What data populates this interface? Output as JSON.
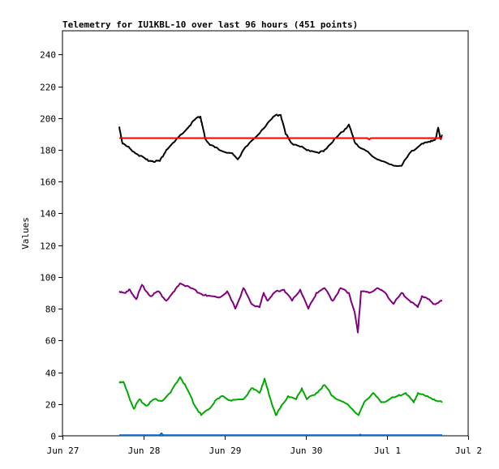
{
  "chart_data": {
    "type": "line",
    "title": "Telemetry for IU1KBL-10 over last 96 hours (451 points)",
    "xlabel": "",
    "ylabel": "Values",
    "x_units": "days since Jun 27 00:00",
    "xlim": [
      0,
      5
    ],
    "ylim": [
      0,
      255
    ],
    "xticks": [
      {
        "v": 0,
        "label": "Jun 27"
      },
      {
        "v": 1,
        "label": "Jun 28"
      },
      {
        "v": 2,
        "label": "Jun 29"
      },
      {
        "v": 3,
        "label": "Jun 30"
      },
      {
        "v": 4,
        "label": "Jul 1"
      },
      {
        "v": 5,
        "label": "Jul 2"
      }
    ],
    "yticks": [
      0,
      20,
      40,
      60,
      80,
      100,
      120,
      140,
      160,
      180,
      200,
      220,
      240
    ],
    "grid": false,
    "series": [
      {
        "name": "black",
        "color": "#000000",
        "points": [
          [
            0.7,
            194.6
          ],
          [
            0.74,
            184
          ],
          [
            0.83,
            181
          ],
          [
            0.93,
            177
          ],
          [
            1.03,
            174
          ],
          [
            1.11,
            173
          ],
          [
            1.2,
            173
          ],
          [
            1.28,
            180
          ],
          [
            1.38,
            185
          ],
          [
            1.53,
            193
          ],
          [
            1.63,
            199
          ],
          [
            1.7,
            201
          ],
          [
            1.72,
            196
          ],
          [
            1.76,
            187
          ],
          [
            1.83,
            183
          ],
          [
            1.93,
            180
          ],
          [
            2.08,
            178
          ],
          [
            2.16,
            174
          ],
          [
            2.23,
            180
          ],
          [
            2.38,
            188
          ],
          [
            2.53,
            197
          ],
          [
            2.63,
            202
          ],
          [
            2.69,
            202
          ],
          [
            2.75,
            190
          ],
          [
            2.83,
            184
          ],
          [
            2.93,
            182
          ],
          [
            3.03,
            180
          ],
          [
            3.16,
            178
          ],
          [
            3.23,
            180
          ],
          [
            3.38,
            188
          ],
          [
            3.48,
            193
          ],
          [
            3.53,
            196
          ],
          [
            3.6,
            185
          ],
          [
            3.68,
            181
          ],
          [
            3.78,
            178
          ],
          [
            3.88,
            174
          ],
          [
            4.03,
            171
          ],
          [
            4.18,
            170
          ],
          [
            4.28,
            178
          ],
          [
            4.43,
            184
          ],
          [
            4.53,
            185
          ],
          [
            4.6,
            187
          ],
          [
            4.63,
            194
          ],
          [
            4.66,
            187
          ],
          [
            4.68,
            189
          ]
        ]
      },
      {
        "name": "red",
        "color": "#ff0000",
        "points": [
          [
            0.7,
            187.4
          ],
          [
            3.76,
            187.4
          ],
          [
            3.78,
            186.5
          ],
          [
            3.8,
            187.4
          ],
          [
            4.68,
            187.4
          ]
        ]
      },
      {
        "name": "purple",
        "color": "#800080",
        "points": [
          [
            0.7,
            91
          ],
          [
            0.78,
            90
          ],
          [
            0.83,
            92
          ],
          [
            0.91,
            86
          ],
          [
            0.98,
            95
          ],
          [
            1.08,
            88
          ],
          [
            1.18,
            91
          ],
          [
            1.28,
            85
          ],
          [
            1.38,
            91
          ],
          [
            1.45,
            96
          ],
          [
            1.58,
            93
          ],
          [
            1.68,
            90
          ],
          [
            1.78,
            88
          ],
          [
            1.93,
            87
          ],
          [
            2.03,
            91
          ],
          [
            2.13,
            80
          ],
          [
            2.23,
            93
          ],
          [
            2.33,
            83
          ],
          [
            2.43,
            81
          ],
          [
            2.48,
            90
          ],
          [
            2.53,
            85
          ],
          [
            2.63,
            91
          ],
          [
            2.73,
            92
          ],
          [
            2.83,
            85
          ],
          [
            2.93,
            92
          ],
          [
            3.03,
            80
          ],
          [
            3.13,
            90
          ],
          [
            3.23,
            93
          ],
          [
            3.33,
            85
          ],
          [
            3.43,
            93
          ],
          [
            3.53,
            90
          ],
          [
            3.6,
            78
          ],
          [
            3.64,
            65
          ],
          [
            3.68,
            91
          ],
          [
            3.78,
            90
          ],
          [
            3.88,
            93
          ],
          [
            3.98,
            90
          ],
          [
            4.08,
            83
          ],
          [
            4.18,
            90
          ],
          [
            4.28,
            85
          ],
          [
            4.38,
            81
          ],
          [
            4.43,
            88
          ],
          [
            4.51,
            86
          ],
          [
            4.58,
            83
          ],
          [
            4.68,
            85
          ]
        ]
      },
      {
        "name": "green",
        "color": "#00aa00",
        "points": [
          [
            0.7,
            34
          ],
          [
            0.75,
            34
          ],
          [
            0.81,
            26
          ],
          [
            0.88,
            17
          ],
          [
            0.95,
            23
          ],
          [
            1.03,
            19
          ],
          [
            1.13,
            23
          ],
          [
            1.23,
            22
          ],
          [
            1.33,
            27
          ],
          [
            1.45,
            37
          ],
          [
            1.53,
            30
          ],
          [
            1.63,
            19
          ],
          [
            1.71,
            13
          ],
          [
            1.81,
            17
          ],
          [
            1.88,
            22
          ],
          [
            1.98,
            25
          ],
          [
            2.08,
            22
          ],
          [
            2.23,
            23
          ],
          [
            2.33,
            30
          ],
          [
            2.43,
            27
          ],
          [
            2.49,
            36
          ],
          [
            2.55,
            25
          ],
          [
            2.63,
            13
          ],
          [
            2.68,
            17
          ],
          [
            2.78,
            25
          ],
          [
            2.88,
            23
          ],
          [
            2.95,
            30
          ],
          [
            3.01,
            23
          ],
          [
            3.13,
            27
          ],
          [
            3.23,
            32
          ],
          [
            3.33,
            25
          ],
          [
            3.43,
            22
          ],
          [
            3.53,
            19
          ],
          [
            3.65,
            13
          ],
          [
            3.73,
            22
          ],
          [
            3.83,
            27
          ],
          [
            3.93,
            21
          ],
          [
            4.03,
            23
          ],
          [
            4.13,
            25
          ],
          [
            4.23,
            27
          ],
          [
            4.33,
            21
          ],
          [
            4.38,
            27
          ],
          [
            4.48,
            25
          ],
          [
            4.58,
            23
          ],
          [
            4.68,
            21
          ]
        ]
      },
      {
        "name": "blue",
        "color": "#0066cc",
        "points": [
          [
            0.7,
            0.4
          ],
          [
            1.2,
            0.4
          ],
          [
            1.22,
            1.6
          ],
          [
            1.24,
            0.4
          ],
          [
            3.66,
            0.4
          ],
          [
            3.67,
            0.8
          ],
          [
            3.68,
            0.4
          ],
          [
            4.68,
            0.4
          ]
        ]
      }
    ]
  }
}
